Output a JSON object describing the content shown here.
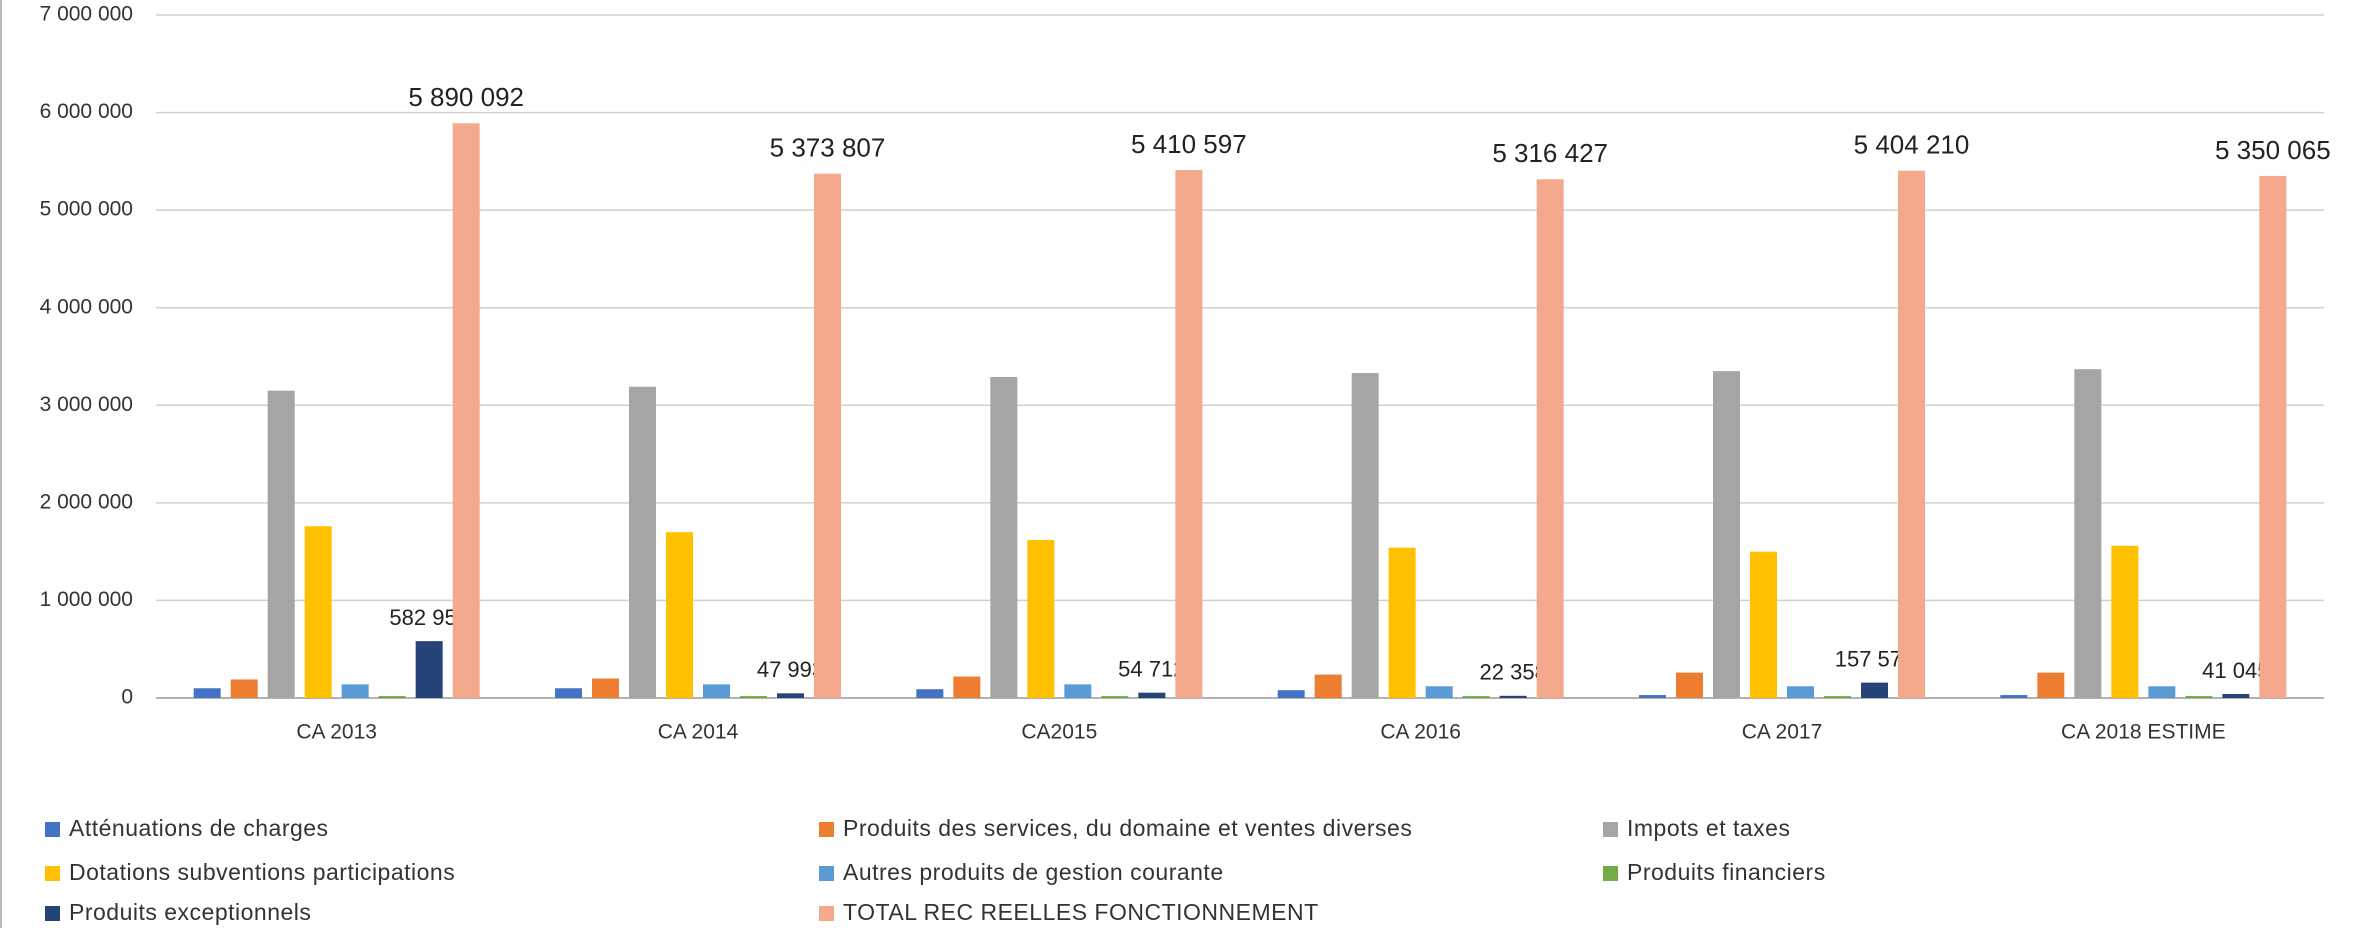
{
  "chart_data": {
    "type": "bar",
    "categories": [
      "CA 2013",
      "CA 2014",
      "CA2015",
      "CA 2016",
      "CA 2017",
      "CA 2018 ESTIME"
    ],
    "series": [
      {
        "name": "Atténuations de charges",
        "color": "#4472c4",
        "values": [
          100000,
          100000,
          90000,
          80000,
          30000,
          30000
        ]
      },
      {
        "name": "Produits des services, du domaine et ventes diverses",
        "color": "#ed7d31",
        "values": [
          190000,
          200000,
          220000,
          240000,
          260000,
          260000
        ]
      },
      {
        "name": "Impots et taxes",
        "color": "#a5a5a5",
        "values": [
          3150000,
          3190000,
          3290000,
          3330000,
          3350000,
          3370000
        ]
      },
      {
        "name": "Dotations subventions participations",
        "color": "#ffc000",
        "values": [
          1760000,
          1700000,
          1620000,
          1540000,
          1500000,
          1560000
        ]
      },
      {
        "name": "Autres produits de gestion courante",
        "color": "#5b9bd5",
        "values": [
          140000,
          140000,
          140000,
          120000,
          120000,
          120000
        ]
      },
      {
        "name": "Produits financiers",
        "color": "#70ad47",
        "values": [
          20000,
          20000,
          20000,
          20000,
          20000,
          20000
        ]
      },
      {
        "name": "Produits exceptionnels",
        "color": "#264478",
        "values": [
          582952,
          47993,
          54712,
          22358,
          157578,
          41045
        ],
        "value_labels": [
          "582 952",
          "47 993",
          "54 712",
          "22 358",
          "157 578",
          "41 045"
        ]
      },
      {
        "name": "TOTAL REC REELLES FONCTIONNEMENT",
        "color": "#f4a88c",
        "values": [
          5890092,
          5373807,
          5410597,
          5316427,
          5404210,
          5350065
        ],
        "value_labels": [
          "5 890 092",
          "5 373 807",
          "5 410 597",
          "5 316 427",
          "5 404 210",
          "5 350 065"
        ]
      }
    ],
    "ylim": [
      0,
      7000000
    ],
    "yticks": [
      {
        "value": 0,
        "label": "0"
      },
      {
        "value": 1000000,
        "label": "1 000 000"
      },
      {
        "value": 2000000,
        "label": "2 000 000"
      },
      {
        "value": 3000000,
        "label": "3 000 000"
      },
      {
        "value": 4000000,
        "label": "4 000 000"
      },
      {
        "value": 5000000,
        "label": "5 000 000"
      },
      {
        "value": 6000000,
        "label": "6 000 000"
      },
      {
        "value": 7000000,
        "label": "7 000 000"
      }
    ],
    "grid": true,
    "legend": "bottom"
  }
}
